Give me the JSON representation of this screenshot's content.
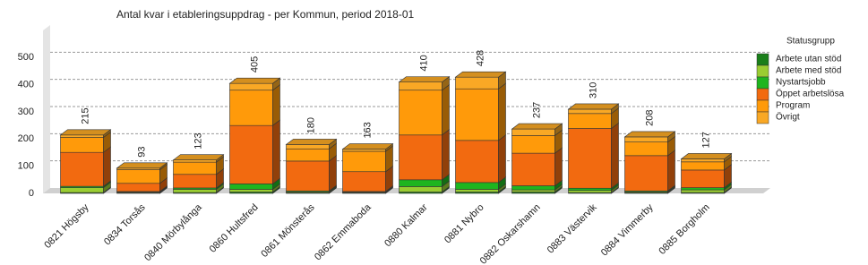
{
  "chart_data": {
    "type": "bar3d-stacked",
    "title": "Antal kvar i etableringsuppdrag - per Kommun, period 2018-01",
    "legend_title": "Statusgrupp",
    "categories": [
      "0821 Högsby",
      "0834 Torsås",
      "0840 Mörbylånga",
      "0860 Hultsfred",
      "0861 Mönsterås",
      "0862 Emmaboda",
      "0880 Kalmar",
      "0881 Nybro",
      "0882 Oskarshamn",
      "0883 Västervik",
      "0884 Vimmerby",
      "0885 Borgholm"
    ],
    "series": [
      {
        "name": "Arbete utan stöd",
        "color": "#1a7f1a",
        "values": [
          3,
          2,
          3,
          5,
          3,
          2,
          5,
          5,
          5,
          3,
          3,
          3
        ]
      },
      {
        "name": "Arbete med stöd",
        "color": "#9acd32",
        "values": [
          18,
          3,
          12,
          10,
          3,
          3,
          20,
          10,
          8,
          8,
          3,
          10
        ]
      },
      {
        "name": "Nystartsjobb",
        "color": "#1fb51f",
        "values": [
          5,
          2,
          5,
          20,
          3,
          2,
          25,
          25,
          15,
          8,
          3,
          8
        ]
      },
      {
        "name": "Öppet arbetslösa",
        "color": "#f26a10",
        "values": [
          125,
          30,
          50,
          215,
          110,
          73,
          165,
          155,
          120,
          220,
          130,
          65
        ]
      },
      {
        "name": "Program",
        "color": "#ff9a0a",
        "values": [
          55,
          50,
          45,
          130,
          45,
          75,
          165,
          190,
          65,
          55,
          50,
          30
        ]
      },
      {
        "name": "Övrigt",
        "color": "#f9a825",
        "values": [
          9,
          6,
          8,
          25,
          16,
          8,
          30,
          43,
          24,
          16,
          19,
          11
        ]
      }
    ],
    "totals": [
      215,
      93,
      123,
      405,
      180,
      163,
      410,
      428,
      237,
      310,
      208,
      127
    ],
    "ylim": [
      0,
      600
    ],
    "yticks": [
      0,
      100,
      200,
      300,
      400,
      500
    ],
    "grid": true
  }
}
